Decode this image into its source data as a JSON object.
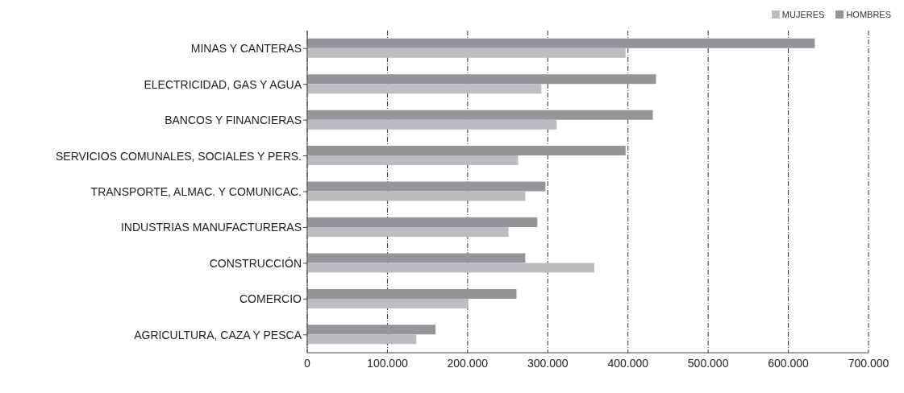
{
  "chart_data": {
    "type": "bar",
    "orientation": "horizontal",
    "categories": [
      "MINAS Y CANTERAS",
      "ELECTRICIDAD, GAS Y AGUA",
      "BANCOS Y FINANCIERAS",
      "SERVICIOS COMUNALES, SOCIALES Y PERS.",
      "TRANSPORTE, ALMAC. Y COMUNICAC.",
      "INDUSTRIAS MANUFACTURERAS",
      "CONSTRUCCIÓN",
      "COMERCIO",
      "AGRICULTURA, CAZA Y PESCA"
    ],
    "series": [
      {
        "name": "MUJERES",
        "color": "#bcbdc1",
        "values": [
          397000,
          292000,
          311000,
          263000,
          272000,
          251000,
          358000,
          201000,
          136000
        ]
      },
      {
        "name": "HOMBRES",
        "color": "#939598",
        "values": [
          633000,
          435000,
          431000,
          397000,
          297000,
          287000,
          272000,
          261000,
          160000
        ]
      }
    ],
    "xlim": [
      0,
      700000
    ],
    "xticks": [
      0,
      {
        "value": 100000,
        "label": "100.000"
      },
      {
        "value": 200000,
        "label": "200.000"
      },
      {
        "value": 300000,
        "label": "300.000"
      },
      {
        "value": 400000,
        "label": "400.000"
      },
      {
        "value": 500000,
        "label": "500.000"
      },
      {
        "value": 600000,
        "label": "600.000"
      },
      {
        "value": 700000,
        "label": "700.000"
      }
    ],
    "grid": "x",
    "legend": "top right"
  }
}
